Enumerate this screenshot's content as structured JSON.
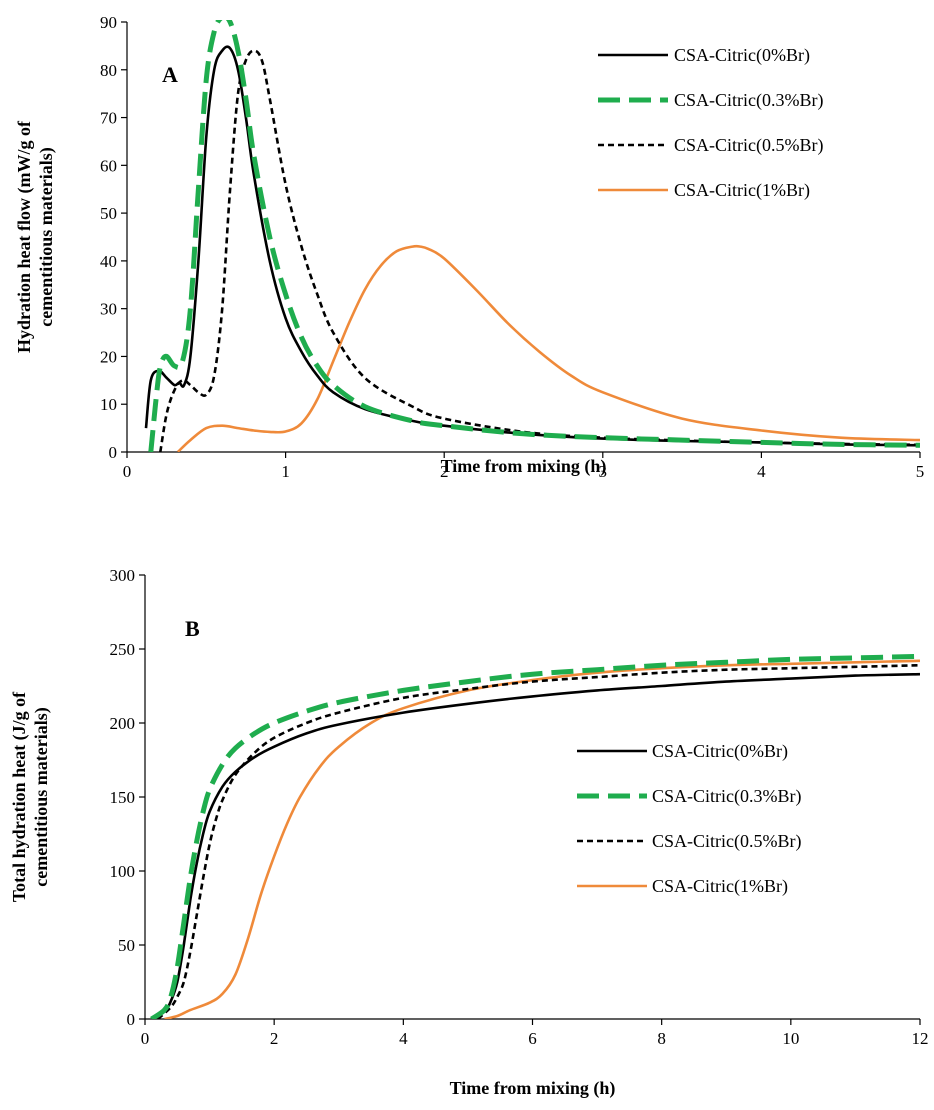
{
  "chart_data": [
    {
      "type": "line",
      "panel_label": "A",
      "xlabel": "Time from mixing (h)",
      "ylabel": [
        "Hydration heat flow (mW/g of",
        "cementitious materials)"
      ],
      "xlim": [
        0,
        5
      ],
      "ylim": [
        0,
        90
      ],
      "xticks": [
        0,
        1,
        2,
        3,
        4,
        5
      ],
      "yticks": [
        0,
        10,
        20,
        30,
        40,
        50,
        60,
        70,
        80,
        90
      ],
      "grid": false,
      "legend_position": "top-right",
      "series": [
        {
          "name": "CSA-Citric(0%Br)",
          "color": "#000000",
          "style": "solid",
          "x": [
            0.12,
            0.15,
            0.2,
            0.25,
            0.3,
            0.33,
            0.36,
            0.4,
            0.45,
            0.5,
            0.55,
            0.6,
            0.65,
            0.7,
            0.75,
            0.8,
            0.9,
            1.0,
            1.1,
            1.2,
            1.3,
            1.5,
            1.8,
            2.0,
            2.5,
            3.0,
            3.5,
            4.0,
            4.5,
            5.0
          ],
          "y": [
            5,
            15,
            17,
            15.5,
            14,
            14.5,
            14,
            20,
            40,
            66,
            80,
            84,
            84.5,
            80,
            70,
            58,
            40,
            28,
            21,
            16,
            12.5,
            9,
            6.5,
            5.5,
            3.8,
            2.8,
            2.3,
            2,
            1.6,
            1.4
          ]
        },
        {
          "name": "CSA-Citric(0.3%Br)",
          "color": "#1fad4e",
          "style": "dashed",
          "x": [
            0.15,
            0.18,
            0.2,
            0.22,
            0.25,
            0.3,
            0.35,
            0.4,
            0.45,
            0.5,
            0.55,
            0.6,
            0.65,
            0.7,
            0.75,
            0.8,
            0.9,
            1.0,
            1.1,
            1.2,
            1.3,
            1.5,
            1.8,
            2.0,
            2.5,
            3.0,
            3.5,
            4.0,
            4.5,
            5.0
          ],
          "y": [
            0,
            10,
            16,
            19,
            20,
            18,
            19,
            30,
            55,
            78,
            88,
            91,
            90,
            84,
            74,
            62,
            45,
            33,
            24,
            18,
            14,
            9.5,
            6.5,
            5.5,
            3.8,
            3,
            2.5,
            2,
            1.6,
            1.4
          ]
        },
        {
          "name": "CSA-Citric(0.5%Br)",
          "color": "#000000",
          "style": "dotted",
          "x": [
            0.21,
            0.25,
            0.3,
            0.35,
            0.4,
            0.45,
            0.5,
            0.55,
            0.6,
            0.65,
            0.7,
            0.75,
            0.8,
            0.85,
            0.9,
            1.0,
            1.1,
            1.2,
            1.3,
            1.5,
            1.8,
            2.0,
            2.5,
            3.0,
            3.5,
            4.0,
            4.5,
            5.0
          ],
          "y": [
            0,
            8,
            13,
            15,
            14,
            12.5,
            12,
            16,
            30,
            55,
            75,
            82,
            84,
            82,
            74,
            56,
            43,
            33,
            25,
            15.5,
            9.5,
            7,
            4.2,
            3,
            2.4,
            2,
            1.7,
            1.5
          ]
        },
        {
          "name": "CSA-Citric(1%Br)",
          "color": "#ef8a3a",
          "style": "solid",
          "x": [
            0.32,
            0.4,
            0.5,
            0.6,
            0.7,
            0.8,
            0.9,
            1.0,
            1.1,
            1.2,
            1.3,
            1.4,
            1.5,
            1.6,
            1.7,
            1.8,
            1.85,
            1.9,
            2.0,
            2.2,
            2.4,
            2.6,
            2.8,
            3.0,
            3.5,
            4.0,
            4.5,
            5.0
          ],
          "y": [
            0,
            2.5,
            5,
            5.5,
            5,
            4.5,
            4.2,
            4.3,
            6,
            11,
            19,
            27,
            34,
            39,
            42,
            43,
            43,
            42.5,
            40.5,
            34,
            27,
            21,
            16,
            12.5,
            7,
            4.5,
            3,
            2.5
          ]
        }
      ]
    },
    {
      "type": "line",
      "panel_label": "B",
      "xlabel": "Time from mixing (h)",
      "ylabel": [
        "Total hydration heat (J/g of",
        "cementitious materials)"
      ],
      "xlim": [
        0,
        12
      ],
      "ylim": [
        0,
        300
      ],
      "xticks": [
        0,
        2,
        4,
        6,
        8,
        10,
        12
      ],
      "yticks": [
        0,
        50,
        100,
        150,
        200,
        250,
        300
      ],
      "grid": false,
      "legend_position": "center-right",
      "series": [
        {
          "name": "CSA-Citric(0%Br)",
          "color": "#000000",
          "style": "solid",
          "x": [
            0.1,
            0.3,
            0.4,
            0.5,
            0.6,
            0.7,
            0.8,
            0.9,
            1.0,
            1.2,
            1.4,
            1.7,
            2.0,
            2.5,
            3,
            4,
            5,
            6,
            7,
            8,
            9,
            10,
            11,
            12
          ],
          "y": [
            0,
            5,
            12,
            25,
            50,
            80,
            105,
            125,
            140,
            157,
            167,
            177,
            184,
            193,
            199,
            207,
            213,
            218,
            222,
            225,
            228,
            230,
            232,
            233
          ]
        },
        {
          "name": "CSA-Citric(0.3%Br)",
          "color": "#1fad4e",
          "style": "dashed",
          "x": [
            0.1,
            0.3,
            0.4,
            0.5,
            0.6,
            0.7,
            0.8,
            0.9,
            1.0,
            1.2,
            1.4,
            1.7,
            2.0,
            2.5,
            3,
            4,
            5,
            6,
            7,
            8,
            9,
            10,
            11,
            12
          ],
          "y": [
            0,
            6,
            15,
            35,
            65,
            95,
            120,
            140,
            155,
            172,
            183,
            193,
            200,
            208,
            214,
            222,
            228,
            233,
            236,
            239,
            241,
            243,
            244,
            245
          ]
        },
        {
          "name": "CSA-Citric(0.5%Br)",
          "color": "#000000",
          "style": "dotted",
          "x": [
            0.2,
            0.4,
            0.5,
            0.6,
            0.7,
            0.8,
            0.9,
            1.0,
            1.1,
            1.2,
            1.4,
            1.7,
            2.0,
            2.5,
            3,
            4,
            5,
            6,
            7,
            8,
            9,
            10,
            11,
            12
          ],
          "y": [
            0,
            8,
            15,
            25,
            45,
            70,
            95,
            118,
            135,
            148,
            165,
            180,
            190,
            200,
            207,
            217,
            223,
            228,
            231,
            234,
            236,
            237,
            238,
            239
          ]
        },
        {
          "name": "CSA-Citric(1%Br)",
          "color": "#ef8a3a",
          "style": "solid",
          "x": [
            0.3,
            0.5,
            0.7,
            1.0,
            1.2,
            1.4,
            1.6,
            1.8,
            2.0,
            2.2,
            2.4,
            2.7,
            3.0,
            3.5,
            4,
            5,
            6,
            7,
            8,
            9,
            10,
            11,
            12
          ],
          "y": [
            0,
            2,
            6,
            11,
            17,
            30,
            55,
            85,
            110,
            132,
            150,
            170,
            184,
            200,
            210,
            222,
            229,
            234,
            237,
            239,
            240,
            241,
            242
          ]
        }
      ]
    }
  ]
}
